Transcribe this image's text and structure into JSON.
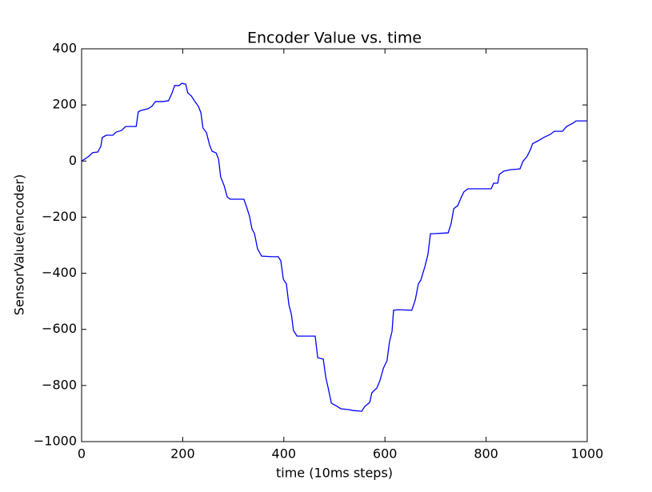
{
  "chart_data": {
    "type": "line",
    "title": "Encoder Value vs. time",
    "xlabel": "time (10ms steps)",
    "ylabel": "SensorValue(encoder)",
    "xlim": [
      0,
      1000
    ],
    "xticks": [
      0,
      200,
      400,
      600,
      800,
      1000
    ],
    "ylim": [
      -1000,
      400
    ],
    "yticks": [
      {
        "value": -1000,
        "label": "−1000"
      },
      {
        "value": -800,
        "label": "−800"
      },
      {
        "value": -600,
        "label": "−600"
      },
      {
        "value": -400,
        "label": "−400"
      },
      {
        "value": -200,
        "label": "−200"
      },
      0,
      200,
      400
    ],
    "series": [
      {
        "color": "#0000ff",
        "x": [
          0,
          13,
          22,
          32,
          38,
          41,
          49,
          62,
          68,
          79,
          87,
          108,
          112,
          117,
          131,
          139,
          146,
          161,
          172,
          179,
          184,
          193,
          198,
          206,
          210,
          217,
          223,
          231,
          236,
          240,
          247,
          253,
          258,
          266,
          271,
          275,
          282,
          288,
          294,
          321,
          326,
          332,
          337,
          342,
          348,
          356,
          377,
          389,
          394,
          399,
          405,
          410,
          415,
          419,
          426,
          462,
          467,
          478,
          483,
          487,
          494,
          503,
          513,
          528,
          536,
          554,
          560,
          570,
          574,
          584,
          590,
          597,
          604,
          609,
          614,
          617,
          627,
          653,
          660,
          666,
          671,
          679,
          685,
          690,
          696,
          725,
          731,
          736,
          744,
          750,
          756,
          764,
          810,
          815,
          823,
          826,
          835,
          848,
          867,
          873,
          881,
          888,
          892,
          902,
          913,
          927,
          935,
          951,
          959,
          972,
          978,
          1000
        ],
        "values": [
          0,
          15,
          30,
          32,
          52,
          84,
          92,
          92,
          103,
          109,
          123,
          123,
          175,
          180,
          186,
          195,
          212,
          212,
          215,
          243,
          269,
          269,
          277,
          274,
          243,
          232,
          215,
          195,
          172,
          118,
          101,
          58,
          35,
          29,
          6,
          -56,
          -88,
          -128,
          -136,
          -136,
          -162,
          -196,
          -242,
          -259,
          -313,
          -339,
          -341,
          -341,
          -356,
          -421,
          -438,
          -512,
          -547,
          -604,
          -624,
          -624,
          -701,
          -706,
          -772,
          -803,
          -863,
          -872,
          -883,
          -886,
          -889,
          -892,
          -875,
          -860,
          -826,
          -809,
          -783,
          -738,
          -712,
          -644,
          -607,
          -532,
          -530,
          -532,
          -495,
          -438,
          -424,
          -376,
          -333,
          -259,
          -259,
          -256,
          -222,
          -170,
          -159,
          -133,
          -110,
          -99,
          -99,
          -79,
          -79,
          -48,
          -36,
          -31,
          -28,
          -1,
          16,
          42,
          62,
          71,
          83,
          95,
          106,
          106,
          123,
          135,
          143,
          143
        ]
      }
    ]
  }
}
